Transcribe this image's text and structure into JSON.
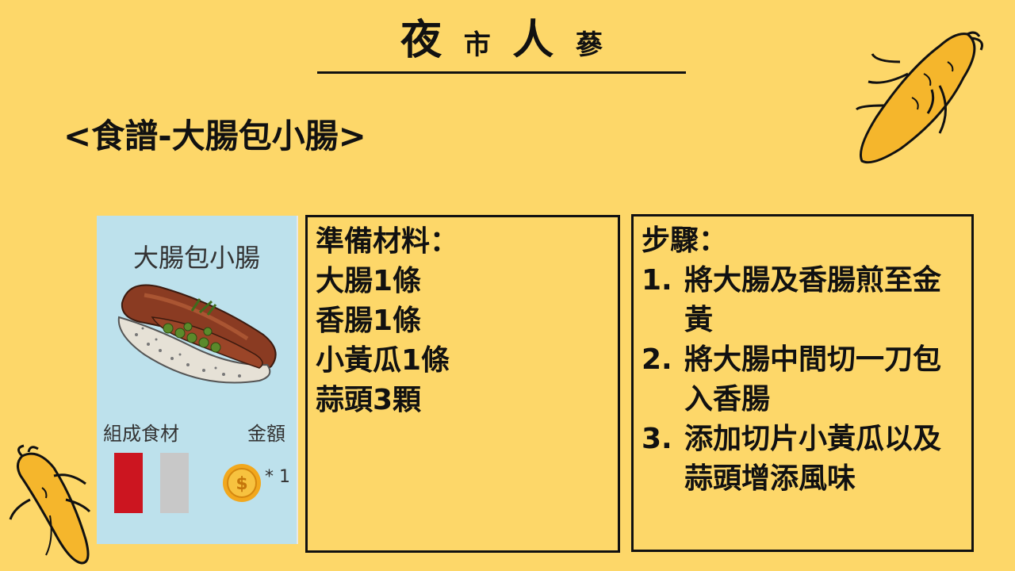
{
  "title": {
    "chars": [
      "夜",
      "市",
      "人",
      "蔘"
    ]
  },
  "subtitle": "<食譜-大腸包小腸>",
  "card": {
    "title": "大腸包小腸",
    "ingredients_label": "組成食材",
    "price_label": "金額",
    "count": "* 1",
    "colors": {
      "background": "#bde1ec",
      "ingredient_1": "#cc1520",
      "ingredient_2": "#c8c8c8",
      "coin": "#f2a81d"
    },
    "icons": [
      "sausage-in-bun-image",
      "dollar-coin-icon"
    ]
  },
  "ingredients": {
    "heading": "準備材料：",
    "items": [
      "大腸1條",
      "香腸1條",
      "小黃瓜1條",
      "蒜頭3顆"
    ]
  },
  "steps": {
    "heading": "步驟：",
    "items": [
      {
        "num": "1.",
        "text": "將大腸及香腸煎至金黃"
      },
      {
        "num": "2.",
        "text": "將大腸中間切一刀包入香腸"
      },
      {
        "num": "3.",
        "text": "添加切片小黃瓜以及蒜頭增添風味"
      }
    ]
  },
  "decorations": {
    "icons": [
      "ginseng-icon",
      "ginseng-icon"
    ],
    "ginseng_color": "#f5b62c"
  }
}
